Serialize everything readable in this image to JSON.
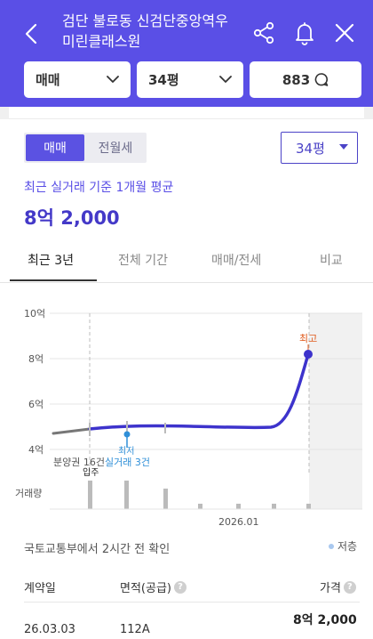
{
  "header": {
    "title_line1": "검단 불로동 신검단중앙역우",
    "title_line2": "미린클래스원",
    "icons": [
      "back-icon",
      "share-icon",
      "bell-icon",
      "close-icon"
    ]
  },
  "filters": {
    "trade_type": "매매",
    "size": "34평",
    "comments_count": "883"
  },
  "toggle": {
    "sale": "매매",
    "rent": "전월세"
  },
  "size_select": "34평",
  "summary": {
    "caption": "최근 실거래 기준 1개월 평균",
    "price": "8억 2,000"
  },
  "tabs": [
    "최근 3년",
    "전체 기간",
    "매매/전세",
    "비교"
  ],
  "chart": {
    "y_ticks": [
      "10억",
      "8억",
      "6억",
      "4억"
    ],
    "annotation_presale": "분양권 16건",
    "annotation_move_in": "입주",
    "annotation_lowest_title": "최저",
    "annotation_lowest_trades": "실거래 3건",
    "annotation_highest": "최고",
    "volume_label": "거래량",
    "x_label": "2026.01"
  },
  "chart_data": {
    "type": "line",
    "ylabel": "",
    "ylim": [
      3.8,
      10.1
    ],
    "y_unit": "억",
    "x_tick": "2026.01",
    "series": [
      {
        "name": "실거래",
        "values": [
          4.7,
          4.8,
          4.9,
          4.95,
          4.95,
          4.92,
          4.95,
          5.0,
          5.6,
          8.2
        ]
      }
    ],
    "highest": 8.2,
    "lowest": 4.65,
    "volume": {
      "label": "거래량",
      "values": [
        3,
        3,
        2,
        0.5,
        0.5,
        0.5,
        0.5
      ]
    }
  },
  "source": {
    "text": "국토교통부에서 2시간 전 확인",
    "legend_lowest": "저층"
  },
  "table": {
    "headers": {
      "date": "계약일",
      "area": "면적(공급)",
      "price": "가격"
    },
    "row": {
      "date": "26.03.03",
      "area": "112A",
      "price": "8억 2,000"
    }
  },
  "colors": {
    "brand": "#5a4fe6",
    "line": "#3d33cc",
    "lowest_marker": "#2f8fd8",
    "highest_label": "#e05a1c"
  }
}
